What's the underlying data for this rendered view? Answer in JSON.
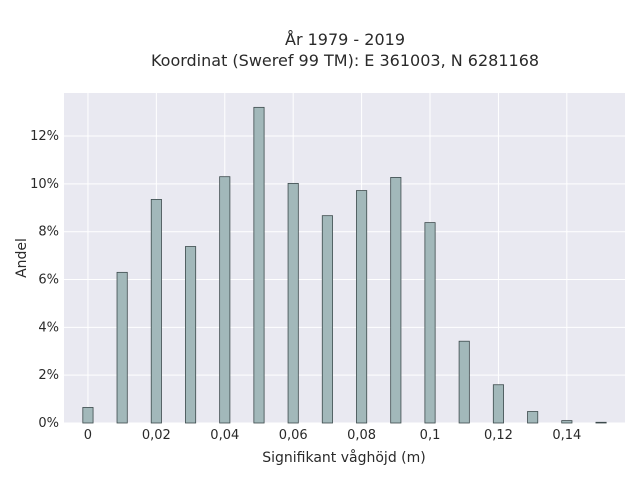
{
  "chart_data": {
    "type": "bar",
    "title_lines": [
      "År 1979 - 2019",
      "Koordinat (Sweref 99 TM): E 361003, N 6281168"
    ],
    "xlabel": "Signifikant våghöjd (m)",
    "ylabel": "Andel",
    "xlim": [
      -0.007,
      0.157
    ],
    "ylim": [
      0,
      13.8
    ],
    "x_ticks": [
      0,
      0.02,
      0.04,
      0.06,
      0.08,
      0.1,
      0.12,
      0.14
    ],
    "x_tick_labels": [
      "0",
      "0,02",
      "0,04",
      "0,06",
      "0,08",
      "0,1",
      "0,12",
      "0,14"
    ],
    "y_ticks": [
      0,
      2,
      4,
      6,
      8,
      10,
      12
    ],
    "y_tick_labels": [
      "0%",
      "2%",
      "4%",
      "6%",
      "8%",
      "10%",
      "12%"
    ],
    "bar_width": 0.003,
    "x": [
      0,
      0.01,
      0.02,
      0.03,
      0.04,
      0.05,
      0.06,
      0.07,
      0.08,
      0.09,
      0.1,
      0.11,
      0.12,
      0.13,
      0.14,
      0.15
    ],
    "values": [
      0.65,
      6.3,
      9.35,
      7.38,
      10.3,
      13.2,
      10.02,
      8.67,
      9.72,
      10.27,
      8.38,
      3.42,
      1.6,
      0.48,
      0.1,
      0.03
    ],
    "grid": true,
    "colors": {
      "plot_background": "#e9e9f1",
      "grid": "#ffffff",
      "bar_fill": "#a2b8ba",
      "bar_stroke": "#3c4a4c"
    }
  }
}
